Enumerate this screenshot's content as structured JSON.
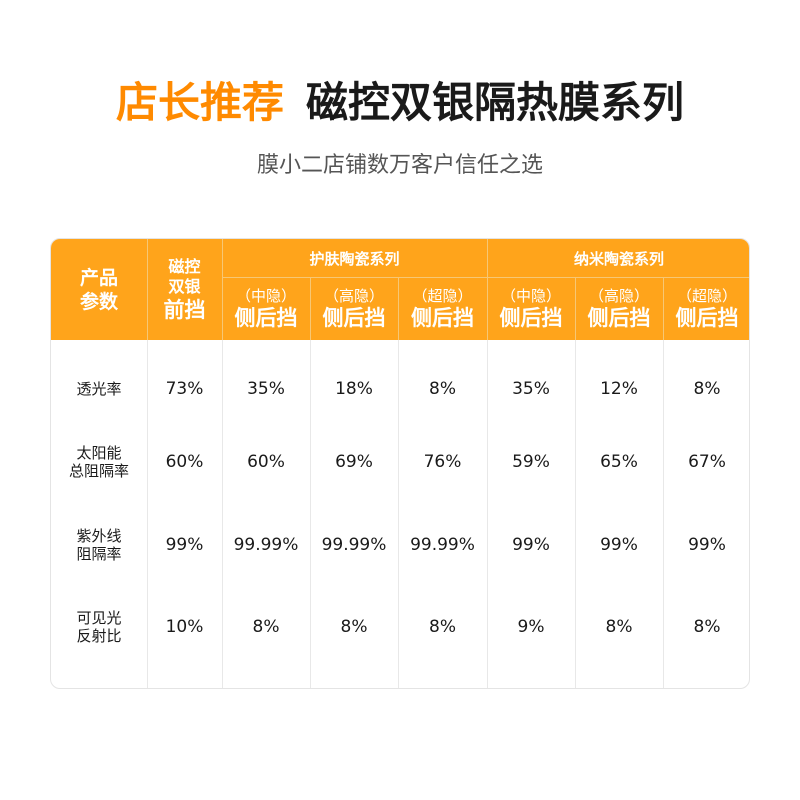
{
  "header": {
    "title_accent": "店长推荐",
    "title_main": "磁控双银隔热膜系列",
    "subtitle": "膜小二店铺数万客户信任之选"
  },
  "table": {
    "param_header": [
      "产品",
      "参数"
    ],
    "magnetic_header": {
      "line1": "磁控",
      "line2": "双银",
      "line3": "前挡"
    },
    "groups": [
      {
        "label": "护肤陶瓷系列"
      },
      {
        "label": "纳米陶瓷系列"
      }
    ],
    "subcols": [
      {
        "top": "（中隐）",
        "bottom": "侧后挡"
      },
      {
        "top": "（高隐）",
        "bottom": "侧后挡"
      },
      {
        "top": "（超隐）",
        "bottom": "侧后挡"
      },
      {
        "top": "（中隐）",
        "bottom": "侧后挡"
      },
      {
        "top": "（高隐）",
        "bottom": "侧后挡"
      },
      {
        "top": "（超隐）",
        "bottom": "侧后挡"
      }
    ],
    "rows": [
      {
        "label": [
          "透光率"
        ],
        "values": [
          "73%",
          "35%",
          "18%",
          "8%",
          "35%",
          "12%",
          "8%"
        ]
      },
      {
        "label": [
          "太阳能",
          "总阻隔率"
        ],
        "values": [
          "60%",
          "60%",
          "69%",
          "76%",
          "59%",
          "65%",
          "67%"
        ]
      },
      {
        "label": [
          "紫外线",
          "阻隔率"
        ],
        "values": [
          "99%",
          "99.99%",
          "99.99%",
          "99.99%",
          "99%",
          "99%",
          "99%"
        ]
      },
      {
        "label": [
          "可见光",
          "反射比"
        ],
        "values": [
          "10%",
          "8%",
          "8%",
          "8%",
          "9%",
          "8%",
          "8%"
        ]
      }
    ]
  },
  "colors": {
    "accent": "#ff8a00",
    "header_bg": "#ffa41b"
  }
}
